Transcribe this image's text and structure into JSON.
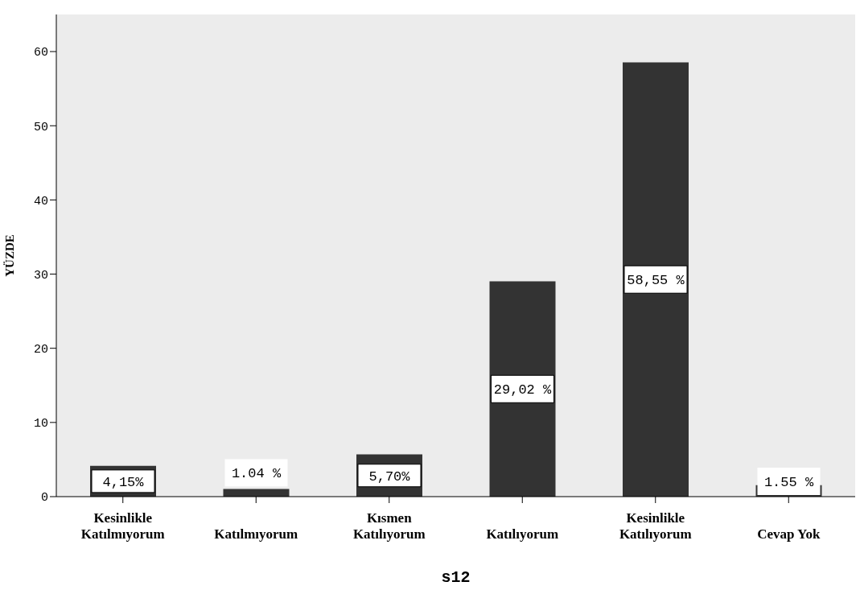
{
  "chart_data": {
    "type": "bar",
    "xlabel": "s12",
    "ylabel": "YÜZDE",
    "categories": [
      "Kesinlikle Katılmıyorum",
      "Katılmıyorum",
      "Kısmen Katılıyorum",
      "Katılıyorum",
      "Kesinlikle Katılıyorum",
      "Cevap Yok"
    ],
    "values": [
      4.15,
      1.04,
      5.7,
      29.02,
      58.55,
      1.55
    ],
    "value_labels": [
      "4,15%",
      "1.04 %",
      "5,70%",
      "29,02 %",
      "58,55 %",
      "1.55 %"
    ],
    "color": "#333333",
    "ylim": [
      0,
      65
    ],
    "yticks": [
      0,
      10,
      20,
      30,
      40,
      50,
      60
    ],
    "grid": false
  }
}
